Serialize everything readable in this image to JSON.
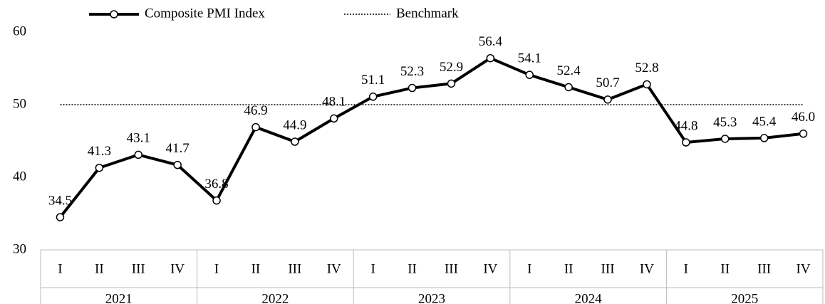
{
  "chart_data": {
    "type": "line",
    "categories": [
      "I",
      "II",
      "III",
      "IV",
      "I",
      "II",
      "III",
      "IV",
      "I",
      "II",
      "III",
      "IV",
      "I",
      "II",
      "III",
      "IV",
      "I",
      "II",
      "III",
      "IV"
    ],
    "groups": [
      "2021",
      "2022",
      "2023",
      "2024",
      "2025"
    ],
    "series": [
      {
        "name": "Composite PMI Index",
        "color": "#000000",
        "values": [
          34.5,
          41.3,
          43.1,
          41.7,
          36.8,
          46.9,
          44.9,
          48.1,
          51.1,
          52.3,
          52.9,
          56.4,
          54.1,
          52.4,
          50.7,
          52.8,
          44.8,
          45.3,
          45.4,
          46.0
        ],
        "value_labels": [
          "34.5",
          "41.3",
          "43.1",
          "41.7",
          "36.8",
          "46.9",
          "44.9",
          "48.1",
          "51.1",
          "52.3",
          "52.9",
          "56.4",
          "54.1",
          "52.4",
          "50.7",
          "52.8",
          "44.8",
          "45.3",
          "45.4",
          "46.0"
        ]
      }
    ],
    "benchmark": {
      "name": "Benchmark",
      "value": 50
    },
    "ylim": [
      30,
      60
    ],
    "yticks": [
      30,
      40,
      50,
      60
    ],
    "grid": false
  }
}
